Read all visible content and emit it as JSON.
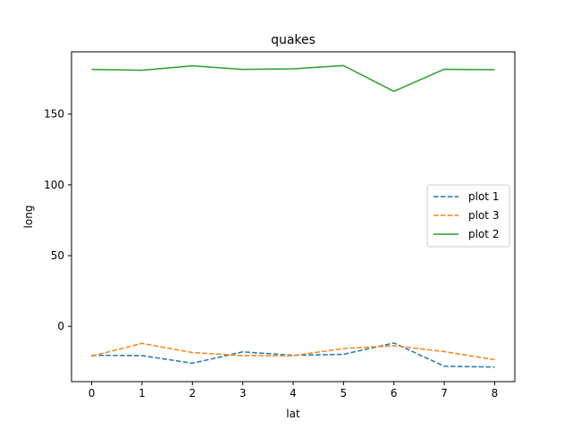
{
  "chart_data": {
    "type": "line",
    "title": "quakes",
    "xlabel": "lat",
    "ylabel": "long",
    "x": [
      0,
      1,
      2,
      3,
      4,
      5,
      6,
      7,
      8
    ],
    "xlim": [
      -0.4,
      8.4
    ],
    "ylim": [
      -39,
      194
    ],
    "xticks": [
      0,
      1,
      2,
      3,
      4,
      5,
      6,
      7,
      8
    ],
    "yticks": [
      0,
      50,
      100,
      150
    ],
    "grid": false,
    "legend_position": "center-right",
    "series": [
      {
        "name": "plot 1",
        "color": "#1f77b4",
        "linestyle": "dashed",
        "values": [
          -20.4,
          -20.6,
          -26.0,
          -18.0,
          -20.4,
          -19.7,
          -11.7,
          -28.1,
          -28.7
        ]
      },
      {
        "name": "plot 3",
        "color": "#ff7f0e",
        "linestyle": "dashed",
        "values": [
          -21.0,
          -12.0,
          -18.5,
          -20.6,
          -20.7,
          -15.6,
          -13.6,
          -17.8,
          -23.5
        ]
      },
      {
        "name": "plot 2",
        "color": "#2ca02c",
        "linestyle": "solid",
        "values": [
          181.6,
          181.0,
          184.1,
          181.6,
          182.0,
          184.3,
          166.1,
          181.7,
          181.4
        ]
      }
    ]
  }
}
